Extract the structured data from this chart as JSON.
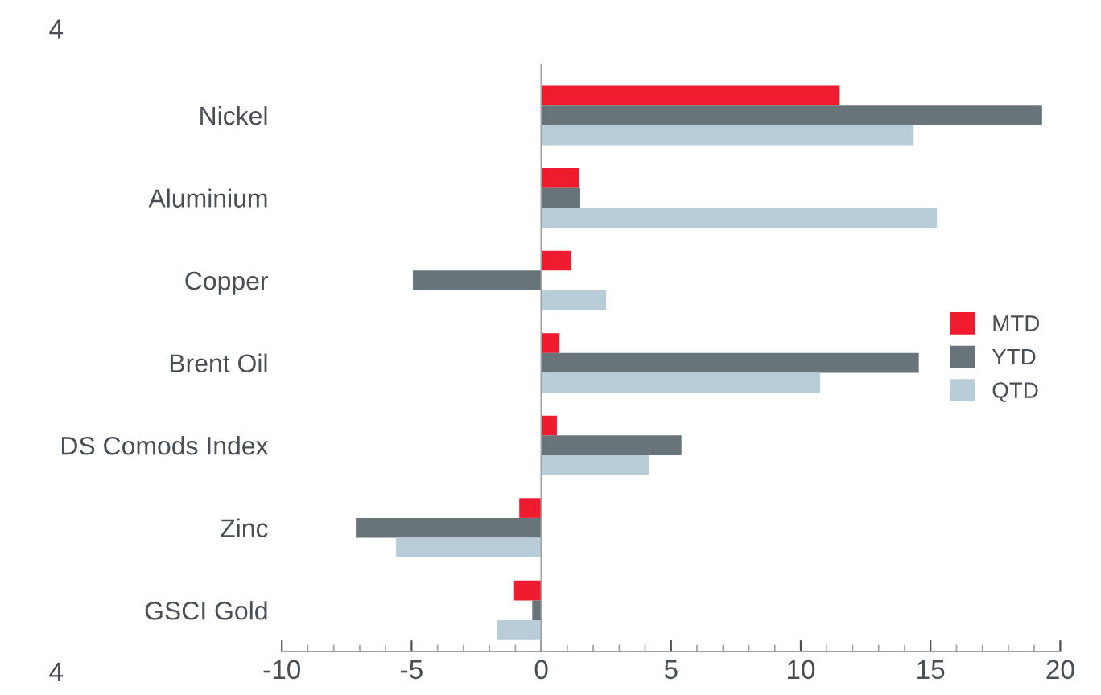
{
  "chart_data": {
    "type": "bar",
    "orientation": "horizontal",
    "categories": [
      "Nickel",
      "Aluminium",
      "Copper",
      "Brent Oil",
      "DS Comods Index",
      "Zinc",
      "GSCI Gold"
    ],
    "series": [
      {
        "name": "MTD",
        "color": "#ee1c2e",
        "values": [
          11.5,
          1.45,
          1.15,
          0.7,
          0.6,
          -0.85,
          -1.05
        ]
      },
      {
        "name": "YTD",
        "color": "#69737a",
        "values": [
          19.3,
          1.5,
          -4.95,
          14.55,
          5.4,
          -7.15,
          -0.35
        ]
      },
      {
        "name": "QTD",
        "color": "#b9cdd9",
        "values": [
          14.35,
          15.25,
          2.5,
          10.75,
          4.15,
          -5.6,
          -1.7
        ]
      }
    ],
    "xlim": [
      -10,
      20
    ],
    "xticks": [
      -10,
      -5,
      0,
      5,
      10,
      15,
      20
    ],
    "legend": "right",
    "annotations": [
      "4",
      "4"
    ]
  }
}
